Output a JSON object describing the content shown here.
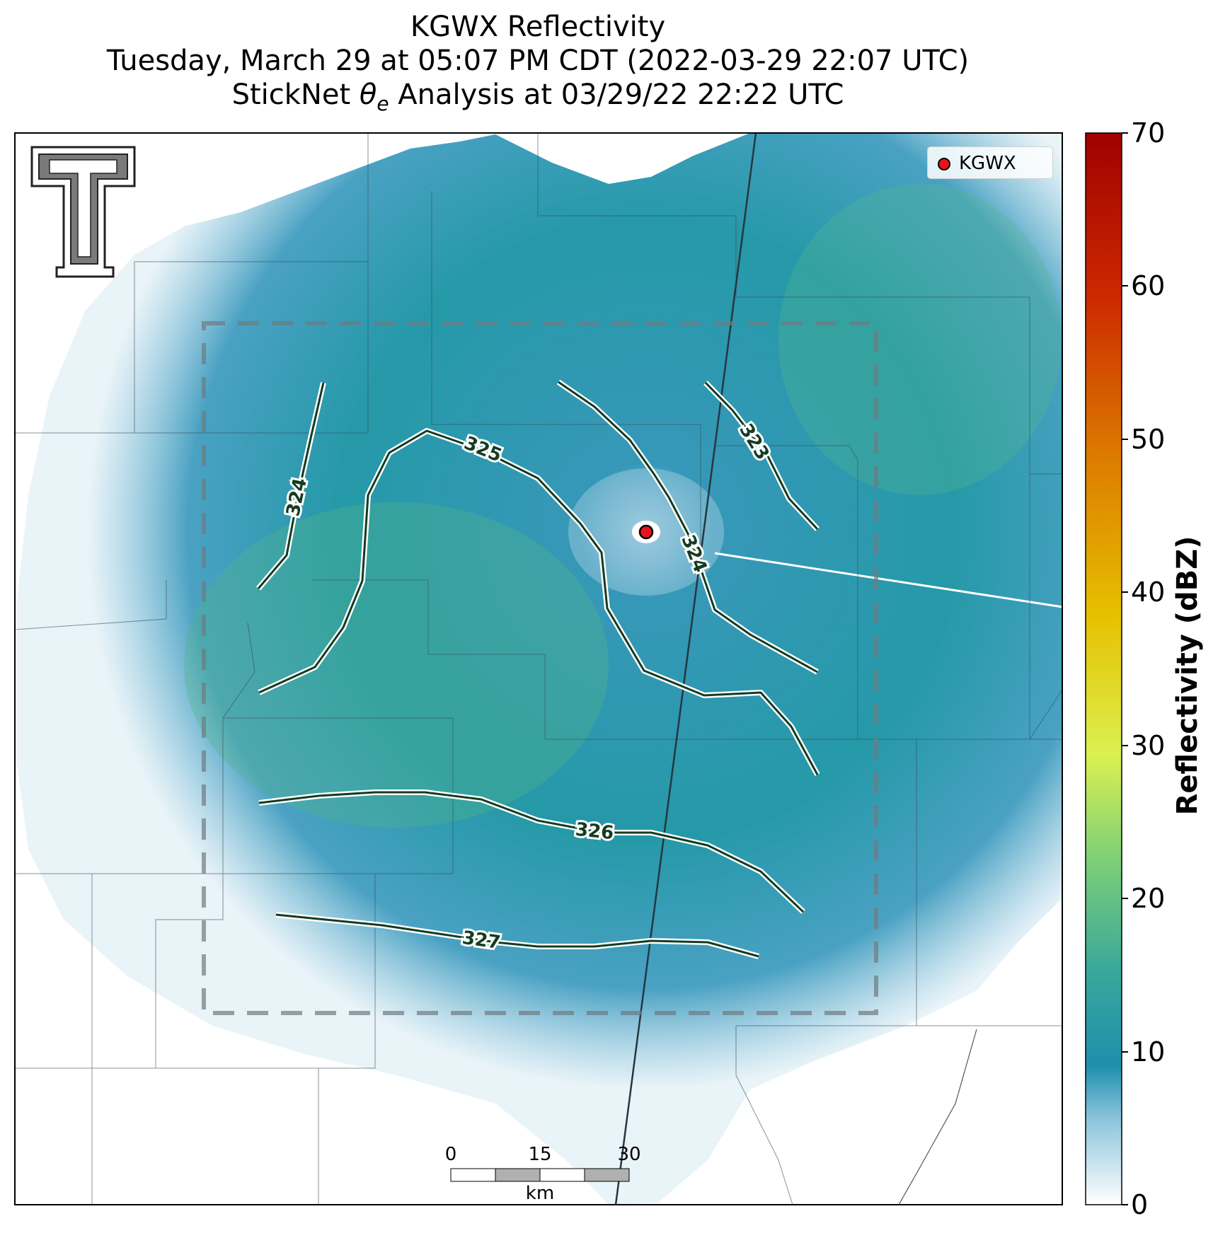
{
  "title": {
    "line1": "KGWX Reflectivity",
    "line2": "Tuesday, March 29 at 05:07 PM CDT (2022-03-29 22:07 UTC)",
    "line3_pre": "StickNet ",
    "line3_symbol": "θ",
    "line3_sub": "e",
    "line3_post": " Analysis at 03/29/22 22:22 UTC"
  },
  "legend": {
    "radar_label": "KGWX",
    "marker_color": "#e8141b"
  },
  "colorbar": {
    "label": "Reflectivity (dBZ)",
    "min": 0,
    "max": 70,
    "ticks": [
      "0",
      "10",
      "20",
      "30",
      "40",
      "50",
      "60",
      "70"
    ],
    "colors": [
      "#ffffff",
      "#1e8fad",
      "#2a9d9a",
      "#5bbd7a",
      "#e8f24a",
      "#e0b000",
      "#d86a00",
      "#c82000",
      "#a00000"
    ]
  },
  "scale_bar": {
    "unit": "km",
    "ticks": [
      "0",
      "15",
      "30"
    ]
  },
  "contours": [
    {
      "value": "323"
    },
    {
      "value": "324"
    },
    {
      "value": "325"
    },
    {
      "value": "324"
    },
    {
      "value": "326"
    },
    {
      "value": "327"
    }
  ],
  "contour_color": "#143c22",
  "echo_color": "#1e8fad"
}
